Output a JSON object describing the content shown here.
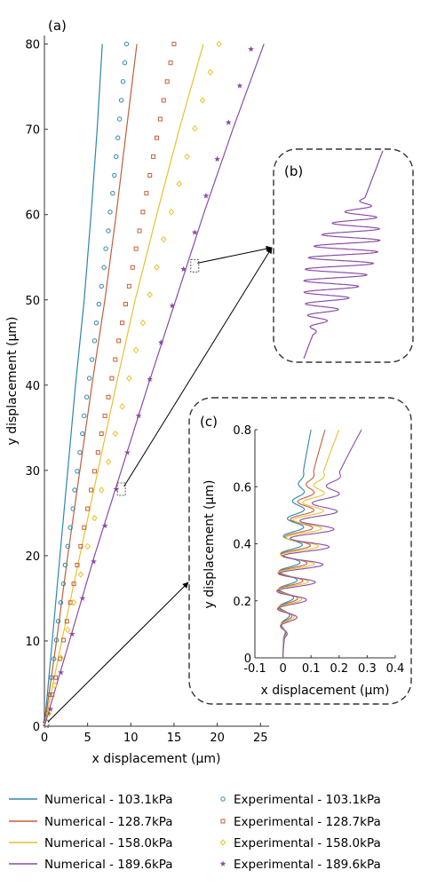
{
  "panels": {
    "a": "(a)",
    "b": "(b)",
    "c": "(c)"
  },
  "colors": {
    "103.1": "#2E86AB",
    "128.7": "#C0603A",
    "158.0": "#E8C12E",
    "189.6": "#8C4CA6",
    "frame": "#333333"
  },
  "chart_data": [
    {
      "id": "a",
      "type": "line",
      "xlabel": "x displacement (μm)",
      "ylabel": "y displacement (μm)",
      "xlim": [
        0,
        26
      ],
      "ylim": [
        0,
        81
      ],
      "xticks": [
        "0",
        "5",
        "10",
        "15",
        "20",
        "25"
      ],
      "yticks": [
        "0",
        "10",
        "20",
        "30",
        "40",
        "50",
        "60",
        "70",
        "80"
      ],
      "grid": false,
      "legend_position": "bottom",
      "series": [
        {
          "name": "Numerical - 103.1kPa",
          "kind": "line",
          "color_key": "103.1",
          "points": [
            [
              0,
              0
            ],
            [
              0.9,
              10
            ],
            [
              1.8,
              20
            ],
            [
              2.7,
              30
            ],
            [
              3.6,
              40
            ],
            [
              4.6,
              50
            ],
            [
              5.4,
              60
            ],
            [
              6.1,
              70
            ],
            [
              6.7,
              80
            ]
          ]
        },
        {
          "name": "Numerical - 128.7kPa",
          "kind": "line",
          "color_key": "128.7",
          "points": [
            [
              0,
              0
            ],
            [
              1.4,
              10
            ],
            [
              2.7,
              20
            ],
            [
              4.1,
              30
            ],
            [
              5.5,
              40
            ],
            [
              7.0,
              50
            ],
            [
              8.3,
              60
            ],
            [
              9.5,
              70
            ],
            [
              10.7,
              80
            ]
          ]
        },
        {
          "name": "Numerical - 158.0kPa",
          "kind": "line",
          "color_key": "158.0",
          "points": [
            [
              0,
              0
            ],
            [
              2.0,
              10
            ],
            [
              4.1,
              20
            ],
            [
              6.2,
              30
            ],
            [
              8.3,
              40
            ],
            [
              10.5,
              50
            ],
            [
              13.0,
              60
            ],
            [
              15.6,
              70
            ],
            [
              18.4,
              80
            ]
          ]
        },
        {
          "name": "Numerical - 189.6kPa",
          "kind": "line",
          "color_key": "189.6",
          "points": [
            [
              0,
              0
            ],
            [
              2.9,
              10
            ],
            [
              5.8,
              20
            ],
            [
              8.9,
              30
            ],
            [
              12.0,
              40
            ],
            [
              15.2,
              50
            ],
            [
              18.4,
              60
            ],
            [
              21.8,
              70
            ],
            [
              25.4,
              80
            ]
          ]
        },
        {
          "name": "Experimental - 103.1kPa",
          "kind": "scatter",
          "marker": "circle",
          "color_key": "103.1",
          "points": [
            [
              0.3,
              1.5
            ],
            [
              0.6,
              3.7
            ],
            [
              0.8,
              5.7
            ],
            [
              1.1,
              7.9
            ],
            [
              1.4,
              10.1
            ],
            [
              1.6,
              12.3
            ],
            [
              1.9,
              14.5
            ],
            [
              2.2,
              16.7
            ],
            [
              2.4,
              18.9
            ],
            [
              2.7,
              21.1
            ],
            [
              3.0,
              23.3
            ],
            [
              3.3,
              25.5
            ],
            [
              3.5,
              27.7
            ],
            [
              3.8,
              29.9
            ],
            [
              4.1,
              32.1
            ],
            [
              4.4,
              34.3
            ],
            [
              4.6,
              36.4
            ],
            [
              4.9,
              38.6
            ],
            [
              5.2,
              40.8
            ],
            [
              5.5,
              43.0
            ],
            [
              5.8,
              45.2
            ],
            [
              6.0,
              47.3
            ],
            [
              6.3,
              49.5
            ],
            [
              6.6,
              51.6
            ],
            [
              6.9,
              53.8
            ],
            [
              7.1,
              56.0
            ],
            [
              7.4,
              58.1
            ],
            [
              7.6,
              60.3
            ],
            [
              7.9,
              62.5
            ],
            [
              8.1,
              64.6
            ],
            [
              8.3,
              66.8
            ],
            [
              8.5,
              69.0
            ],
            [
              8.7,
              71.2
            ],
            [
              8.9,
              73.4
            ],
            [
              9.1,
              75.6
            ],
            [
              9.3,
              77.8
            ],
            [
              9.5,
              80.0
            ]
          ]
        },
        {
          "name": "Experimental - 128.7kPa",
          "kind": "scatter",
          "marker": "square",
          "color_key": "128.7",
          "points": [
            [
              0.4,
              1.5
            ],
            [
              0.9,
              3.7
            ],
            [
              1.3,
              5.7
            ],
            [
              1.8,
              7.9
            ],
            [
              2.2,
              10.1
            ],
            [
              2.6,
              12.3
            ],
            [
              3.0,
              14.5
            ],
            [
              3.4,
              16.7
            ],
            [
              3.8,
              18.9
            ],
            [
              4.2,
              21.1
            ],
            [
              4.6,
              23.3
            ],
            [
              5.0,
              25.5
            ],
            [
              5.4,
              27.7
            ],
            [
              5.8,
              29.9
            ],
            [
              6.2,
              32.1
            ],
            [
              6.6,
              34.3
            ],
            [
              7.0,
              36.4
            ],
            [
              7.4,
              38.6
            ],
            [
              7.8,
              40.8
            ],
            [
              8.2,
              43.0
            ],
            [
              8.6,
              45.2
            ],
            [
              9.0,
              47.3
            ],
            [
              9.4,
              49.5
            ],
            [
              9.8,
              51.6
            ],
            [
              10.2,
              53.8
            ],
            [
              10.6,
              56.0
            ],
            [
              11.0,
              58.1
            ],
            [
              11.4,
              60.3
            ],
            [
              11.8,
              62.5
            ],
            [
              12.2,
              64.6
            ],
            [
              12.6,
              66.8
            ],
            [
              13.0,
              69.0
            ],
            [
              13.4,
              71.2
            ],
            [
              13.8,
              73.4
            ],
            [
              14.2,
              75.6
            ],
            [
              14.6,
              77.8
            ],
            [
              15.0,
              80.0
            ]
          ]
        },
        {
          "name": "Experimental - 158.0kPa",
          "kind": "scatter",
          "marker": "diamond",
          "color_key": "158.0",
          "points": [
            [
              0.5,
              1.5
            ],
            [
              1.2,
              4.8
            ],
            [
              1.9,
              8.0
            ],
            [
              2.7,
              11.3
            ],
            [
              3.4,
              14.5
            ],
            [
              4.2,
              17.8
            ],
            [
              5.0,
              21.1
            ],
            [
              5.8,
              24.4
            ],
            [
              6.6,
              27.7
            ],
            [
              7.4,
              31.0
            ],
            [
              8.2,
              34.3
            ],
            [
              9.0,
              37.5
            ],
            [
              9.8,
              40.8
            ],
            [
              10.6,
              44.1
            ],
            [
              11.4,
              47.3
            ],
            [
              12.2,
              50.6
            ],
            [
              13.0,
              53.8
            ],
            [
              13.8,
              57.1
            ],
            [
              14.7,
              60.3
            ],
            [
              15.6,
              63.6
            ],
            [
              16.5,
              66.8
            ],
            [
              17.4,
              70.1
            ],
            [
              18.3,
              73.4
            ],
            [
              19.2,
              76.7
            ],
            [
              20.2,
              80.0
            ]
          ]
        },
        {
          "name": "Experimental - 189.6kPa",
          "kind": "scatter",
          "marker": "star",
          "color_key": "189.6",
          "points": [
            [
              0.7,
              2.0
            ],
            [
              1.9,
              6.3
            ],
            [
              3.2,
              10.8
            ],
            [
              4.4,
              15.0
            ],
            [
              5.7,
              19.3
            ],
            [
              7.0,
              23.5
            ],
            [
              8.3,
              27.8
            ],
            [
              9.6,
              32.1
            ],
            [
              10.9,
              36.4
            ],
            [
              12.2,
              40.7
            ],
            [
              13.5,
              45.0
            ],
            [
              14.8,
              49.3
            ],
            [
              16.1,
              53.6
            ],
            [
              17.4,
              57.9
            ],
            [
              18.7,
              62.2
            ],
            [
              20.0,
              66.5
            ],
            [
              21.3,
              70.8
            ],
            [
              22.6,
              75.1
            ],
            [
              23.9,
              79.4
            ]
          ]
        }
      ]
    },
    {
      "id": "b",
      "type": "line",
      "title": "",
      "axes_shown": false,
      "note": "zoomed view of the 189.6kPa numerical curve near y ≈ 54 μm"
    },
    {
      "id": "c",
      "type": "line",
      "xlabel": "x displacement (μm)",
      "ylabel": "y displacement (μm)",
      "xlim": [
        -0.1,
        0.4
      ],
      "ylim": [
        0,
        0.8
      ],
      "xticks": [
        "-0.1",
        "0",
        "0.1",
        "0.2",
        "0.3",
        "0.4"
      ],
      "yticks": [
        "0",
        "0.2",
        "0.4",
        "0.6",
        "0.8"
      ],
      "grid": false,
      "series": [
        {
          "name": "Numerical - 103.1kPa",
          "color_key": "103.1",
          "amplitude_um": 0.055,
          "end_x_um": 0.1
        },
        {
          "name": "Numerical - 128.7kPa",
          "color_key": "128.7",
          "amplitude_um": 0.075,
          "end_x_um": 0.15
        },
        {
          "name": "Numerical - 158.0kPa",
          "color_key": "158.0",
          "amplitude_um": 0.095,
          "end_x_um": 0.2
        },
        {
          "name": "Numerical - 189.6kPa",
          "color_key": "189.6",
          "amplitude_um": 0.115,
          "end_x_um": 0.28
        }
      ]
    }
  ],
  "legend": [
    {
      "label": "Numerical - 103.1kPa",
      "marker": "line",
      "color_key": "103.1"
    },
    {
      "label": "Experimental - 103.1kPa",
      "marker": "circle",
      "color_key": "103.1"
    },
    {
      "label": "Numerical - 128.7kPa",
      "marker": "line",
      "color_key": "128.7"
    },
    {
      "label": "Experimental - 128.7kPa",
      "marker": "square",
      "color_key": "128.7"
    },
    {
      "label": "Numerical - 158.0kPa",
      "marker": "line",
      "color_key": "158.0"
    },
    {
      "label": "Experimental - 158.0kPa",
      "marker": "diamond",
      "color_key": "158.0"
    },
    {
      "label": "Numerical - 189.6kPa",
      "marker": "line",
      "color_key": "189.6"
    },
    {
      "label": "Experimental - 189.6kPa",
      "marker": "star",
      "color_key": "189.6"
    }
  ]
}
